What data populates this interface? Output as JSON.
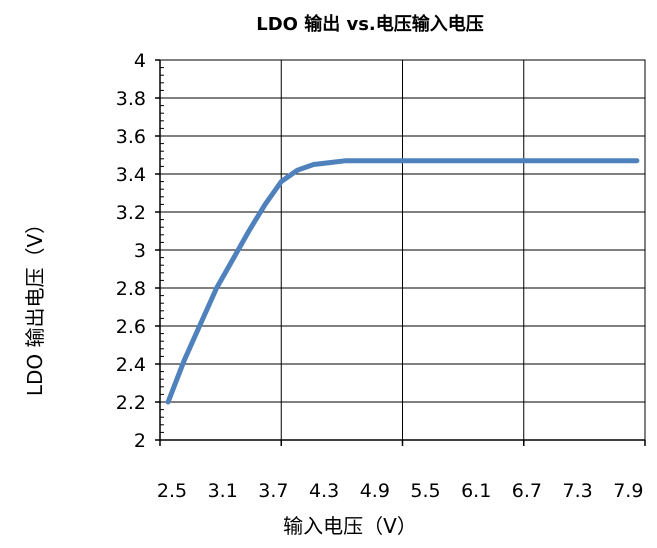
{
  "chart_data": {
    "type": "line",
    "title": "LDO 输出 vs.电压输入电压",
    "xlabel": "输入电压（V）",
    "ylabel": "LDO 输出电压（V）",
    "x_tick_labels": [
      "2.5",
      "3.1",
      "3.7",
      "4.3",
      "4.9",
      "5.5",
      "6.1",
      "6.7",
      "7.3",
      "7.9"
    ],
    "y_tick_labels": [
      "2",
      "2.2",
      "2.4",
      "2.6",
      "2.8",
      "3",
      "3.2",
      "3.4",
      "3.6",
      "3.8",
      "4"
    ],
    "xlim": [
      2.5,
      8.5
    ],
    "ylim": [
      2,
      4
    ],
    "grid": true,
    "series": [
      {
        "color": "#4F81BD",
        "x": [
          2.6,
          2.8,
          3.0,
          3.2,
          3.4,
          3.6,
          3.8,
          4.0,
          4.2,
          4.4,
          4.6,
          4.8,
          5.0,
          5.5,
          6.0,
          6.5,
          7.0,
          7.5,
          8.0,
          8.4
        ],
        "y": [
          2.2,
          2.42,
          2.61,
          2.8,
          2.95,
          3.1,
          3.24,
          3.36,
          3.42,
          3.45,
          3.46,
          3.47,
          3.47,
          3.47,
          3.47,
          3.47,
          3.47,
          3.47,
          3.47,
          3.47
        ]
      }
    ]
  }
}
